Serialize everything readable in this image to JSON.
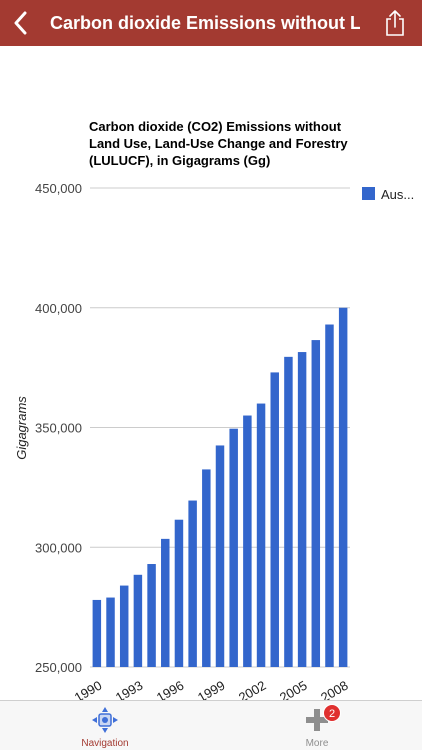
{
  "navbar": {
    "title": "Carbon dioxide Emissions without L...",
    "back_icon": "chevron-left-icon",
    "share_icon": "share-icon",
    "color": "#a33a31"
  },
  "chart_data": {
    "type": "bar",
    "title": "Carbon dioxide (CO2) Emissions without Land Use, Land-Use Change and Forestry (LULUCF), in Gigagrams (Gg)",
    "ylabel": "Gigagrams",
    "xlabel": "",
    "ylim": [
      250000,
      450000
    ],
    "yticks": [
      "450,000",
      "400,000",
      "350,000",
      "300,000",
      "250,000"
    ],
    "ytick_values": [
      450000,
      400000,
      350000,
      300000,
      250000
    ],
    "xtick_labels": [
      "1990",
      "1993",
      "1996",
      "1999",
      "2002",
      "2005",
      "2008"
    ],
    "categories": [
      "1990",
      "1991",
      "1992",
      "1993",
      "1994",
      "1995",
      "1996",
      "1997",
      "1998",
      "1999",
      "2000",
      "2001",
      "2002",
      "2003",
      "2004",
      "2005",
      "2006",
      "2007",
      "2008"
    ],
    "series": [
      {
        "name": "Aus...",
        "color": "#3366cc",
        "values": [
          278000,
          279000,
          284000,
          288500,
          293000,
          303500,
          311500,
          319500,
          332500,
          342500,
          349500,
          355000,
          360000,
          373000,
          379500,
          381500,
          386500,
          393000,
          400000
        ]
      }
    ],
    "legend_position": "right",
    "grid": true
  },
  "tabbar": {
    "navigation_label": "Navigation",
    "more_label": "More",
    "more_badge": "2",
    "navigation_icon": "navigation-icon",
    "more_icon": "plus-icon"
  }
}
